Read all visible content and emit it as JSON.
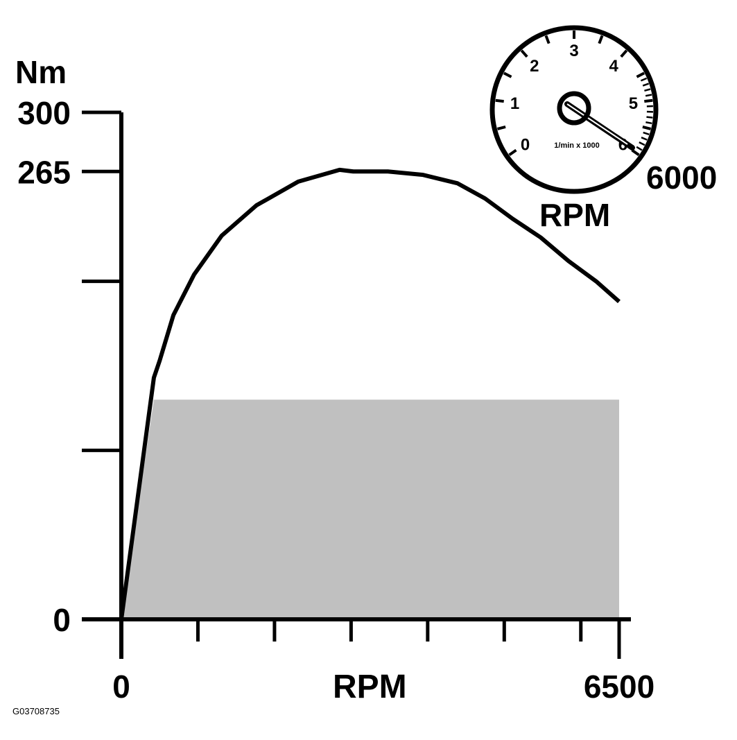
{
  "chart_data": {
    "type": "line",
    "title": "",
    "xlabel": "RPM",
    "ylabel": "Nm",
    "xlim": [
      0,
      6500
    ],
    "ylim": [
      0,
      300
    ],
    "x_tick_labels": [
      "0",
      "6500"
    ],
    "x_tick_values": [
      0,
      1000,
      2000,
      3000,
      4000,
      5000,
      6000,
      6500
    ],
    "y_tick_labels": [
      "0",
      "265",
      "300"
    ],
    "y_tick_values": [
      0,
      100,
      200,
      265,
      300
    ],
    "grid": false,
    "series": [
      {
        "x": [
          0,
          425,
          500,
          680,
          950,
          1310,
          1765,
          2310,
          2850,
          3030,
          3480,
          3940,
          4390,
          4750,
          5110,
          5475,
          5840,
          6200,
          6500
        ],
        "y": [
          0,
          143,
          153,
          180,
          204,
          227,
          245,
          259,
          266,
          265,
          265,
          263,
          258,
          249,
          237,
          226,
          212,
          200,
          188
        ],
        "color": "#000000"
      }
    ],
    "shaded_area": {
      "x": [
        0,
        425,
        6500
      ],
      "y": [
        0,
        130,
        130
      ],
      "color": "#c0c0c0"
    }
  },
  "tachometer": {
    "dial_labels": [
      "0",
      "1",
      "2",
      "3",
      "4",
      "5",
      "6"
    ],
    "unit_label": "1/min x 1000",
    "reading_label": "6000",
    "rpm_label": "RPM"
  },
  "figure_code": "G03708735"
}
